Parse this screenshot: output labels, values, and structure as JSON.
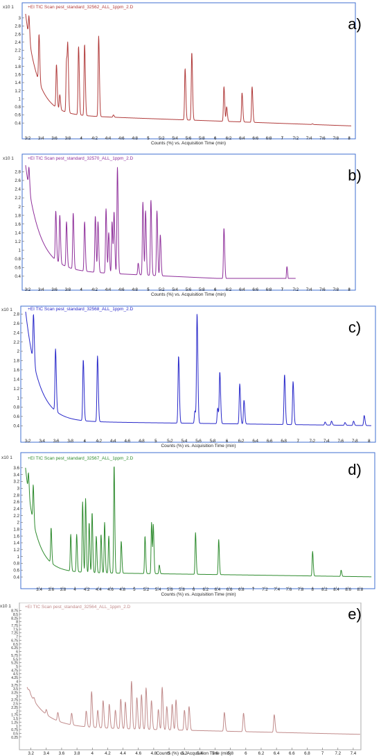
{
  "chart_data": [
    {
      "type": "line",
      "panel_label": "a)",
      "title": "+EI TIC Scan pest_standard_32562_ALL_1ppm_2.D",
      "exponent": "x10 1",
      "xlabel": "Counts (%) vs. Acquisition Time (min)",
      "line_color": "#b03a3a",
      "frame_color": "#3f6fd1",
      "xlim": [
        3.16,
        8.04
      ],
      "ylim": [
        0.3,
        3.1
      ],
      "x_ticks": [
        "3.2",
        "3.4",
        "3.6",
        "3.8",
        "4",
        "4.2",
        "4.4",
        "4.6",
        "4.8",
        "5",
        "5.2",
        "5.4",
        "5.6",
        "5.8",
        "6",
        "6.2",
        "6.4",
        "6.6",
        "6.8",
        "7",
        "7.2",
        "7.4",
        "7.6",
        "7.8",
        "8"
      ],
      "y_ticks": [
        "3",
        "2.8",
        "2.6",
        "2.4",
        "2.2",
        "2",
        "1.8",
        "1.6",
        "1.4",
        "1.2",
        "1",
        "0.8",
        "0.6",
        "0.4"
      ],
      "baseline": {
        "start": 3.1,
        "tau": 0.18,
        "floor": 0.62,
        "slope": -0.06
      },
      "peaks": [
        {
          "x": 3.22,
          "y": 3.05
        },
        {
          "x": 3.37,
          "y": 2.6
        },
        {
          "x": 3.63,
          "y": 1.85
        },
        {
          "x": 3.68,
          "y": 1.1
        },
        {
          "x": 3.78,
          "y": 1.95
        },
        {
          "x": 3.8,
          "y": 2.1
        },
        {
          "x": 3.96,
          "y": 2.3
        },
        {
          "x": 4.05,
          "y": 2.35
        },
        {
          "x": 4.26,
          "y": 2.55
        },
        {
          "x": 4.48,
          "y": 0.6
        },
        {
          "x": 5.55,
          "y": 1.75
        },
        {
          "x": 5.65,
          "y": 2.15
        },
        {
          "x": 6.13,
          "y": 1.3
        },
        {
          "x": 6.17,
          "y": 0.8
        },
        {
          "x": 6.4,
          "y": 1.15
        },
        {
          "x": 6.55,
          "y": 1.3
        },
        {
          "x": 7.45,
          "y": 0.38
        }
      ]
    },
    {
      "type": "line",
      "panel_label": "b)",
      "title": "+EI TIC Scan pest_standard_32570_ALL_1ppm_2.D",
      "exponent": "x10 1",
      "xlabel": "Counts (%) vs. Acquisition Time (min)",
      "line_color": "#8e2e9a",
      "frame_color": "#3f6fd1",
      "xlim": [
        3.16,
        8.04
      ],
      "ylim": [
        0.35,
        2.95
      ],
      "x_ticks": [
        "3.2",
        "3.4",
        "3.6",
        "3.8",
        "4",
        "4.2",
        "4.4",
        "4.6",
        "4.8",
        "5",
        "5.2",
        "5.4",
        "5.6",
        "5.8",
        "6",
        "6.2",
        "6.4",
        "6.6",
        "6.8",
        "7",
        "7.2",
        "7.4",
        "7.6",
        "7.8",
        "8"
      ],
      "y_ticks": [
        "2.8",
        "2.6",
        "2.4",
        "2.2",
        "2",
        "1.8",
        "1.6",
        "1.4",
        "1.2",
        "1",
        "0.8",
        "0.6",
        "0.4"
      ],
      "end_x": 7.2,
      "baseline": {
        "start": 2.95,
        "tau": 0.2,
        "floor": 0.55,
        "slope": -0.07
      },
      "peaks": [
        {
          "x": 3.22,
          "y": 2.9
        },
        {
          "x": 3.62,
          "y": 1.9
        },
        {
          "x": 3.68,
          "y": 1.8
        },
        {
          "x": 3.78,
          "y": 1.65
        },
        {
          "x": 3.88,
          "y": 1.85
        },
        {
          "x": 4.05,
          "y": 1.65
        },
        {
          "x": 4.21,
          "y": 1.78
        },
        {
          "x": 4.25,
          "y": 1.65
        },
        {
          "x": 4.37,
          "y": 1.95
        },
        {
          "x": 4.41,
          "y": 1.4
        },
        {
          "x": 4.46,
          "y": 1.65
        },
        {
          "x": 4.49,
          "y": 1.85
        },
        {
          "x": 4.54,
          "y": 2.9
        },
        {
          "x": 4.85,
          "y": 0.7
        },
        {
          "x": 4.92,
          "y": 2.1
        },
        {
          "x": 4.96,
          "y": 1.9
        },
        {
          "x": 5.04,
          "y": 2.15
        },
        {
          "x": 5.13,
          "y": 1.9
        },
        {
          "x": 5.18,
          "y": 1.35
        },
        {
          "x": 6.13,
          "y": 1.5
        },
        {
          "x": 7.07,
          "y": 0.62
        }
      ]
    },
    {
      "type": "line",
      "panel_label": "c)",
      "title": "+EI TIC Scan pest_standard_32568_ALL_1ppm_2.D",
      "exponent": "x10 1",
      "xlabel": "Counts (%) vs. Acquisition Time (min)",
      "line_color": "#2626c9",
      "frame_color": "#3f6fd1",
      "xlim": [
        3.16,
        8.04
      ],
      "ylim": [
        0.3,
        2.85
      ],
      "x_ticks": [
        "3.2",
        "3.4",
        "3.6",
        "3.8",
        "4",
        "4.2",
        "4.4",
        "4.6",
        "4.8",
        "5",
        "5.2",
        "5.4",
        "5.6",
        "5.8",
        "6",
        "6.2",
        "6.4",
        "6.6",
        "6.8",
        "7",
        "7.2",
        "7.4",
        "7.6",
        "7.8",
        "8"
      ],
      "y_ticks": [
        "2.8",
        "2.6",
        "2.4",
        "2.2",
        "2",
        "1.8",
        "1.6",
        "1.4",
        "1.2",
        "1",
        "0.8",
        "0.6",
        "0.4"
      ],
      "baseline": {
        "start": 2.85,
        "tau": 0.18,
        "floor": 0.5,
        "slope": -0.02
      },
      "peaks": [
        {
          "x": 3.28,
          "y": 2.8
        },
        {
          "x": 3.59,
          "y": 2.05
        },
        {
          "x": 3.98,
          "y": 1.82
        },
        {
          "x": 4.18,
          "y": 1.9
        },
        {
          "x": 5.32,
          "y": 1.9
        },
        {
          "x": 5.55,
          "y": 0.72
        },
        {
          "x": 5.58,
          "y": 2.8
        },
        {
          "x": 5.87,
          "y": 0.78
        },
        {
          "x": 5.9,
          "y": 1.55
        },
        {
          "x": 6.18,
          "y": 1.3
        },
        {
          "x": 6.24,
          "y": 0.95
        },
        {
          "x": 6.81,
          "y": 1.5
        },
        {
          "x": 6.93,
          "y": 1.35
        },
        {
          "x": 7.38,
          "y": 0.48
        },
        {
          "x": 7.47,
          "y": 0.5
        },
        {
          "x": 7.66,
          "y": 0.47
        },
        {
          "x": 7.78,
          "y": 0.5
        },
        {
          "x": 7.93,
          "y": 0.62
        }
      ]
    },
    {
      "type": "line",
      "panel_label": "d)",
      "title": "+EI TIC Scan pest_standard_32567_ALL_1ppm_2.D",
      "exponent": "x10 1",
      "xlabel": "Counts (%) vs. Acquisition Time (min)",
      "line_color": "#2e8b2e",
      "frame_color": "#3f6fd1",
      "xlim": [
        3.16,
        9.0
      ],
      "ylim": [
        0.3,
        3.8
      ],
      "x_ticks": [
        "3.4",
        "3.6",
        "3.8",
        "4",
        "4.2",
        "4.4",
        "4.6",
        "4.8",
        "5",
        "5.2",
        "5.4",
        "5.6",
        "5.8",
        "6",
        "6.2",
        "6.4",
        "6.6",
        "6.8",
        "7",
        "7.2",
        "7.4",
        "7.6",
        "7.8",
        "8",
        "8.2",
        "8.4",
        "8.6",
        "8.8"
      ],
      "y_ticks": [
        "3.6",
        "3.4",
        "3.2",
        "3",
        "2.8",
        "2.6",
        "2.4",
        "2.2",
        "2",
        "1.8",
        "1.6",
        "1.4",
        "1.2",
        "1",
        "0.8",
        "0.6",
        "0.4"
      ],
      "baseline": {
        "start": 3.6,
        "tau": 0.18,
        "floor": 0.55,
        "slope": -0.025
      },
      "peaks": [
        {
          "x": 3.22,
          "y": 3.45
        },
        {
          "x": 3.3,
          "y": 3.1
        },
        {
          "x": 3.6,
          "y": 1.85
        },
        {
          "x": 3.93,
          "y": 1.65
        },
        {
          "x": 4.03,
          "y": 1.65
        },
        {
          "x": 4.13,
          "y": 2.6
        },
        {
          "x": 4.18,
          "y": 2.7
        },
        {
          "x": 4.24,
          "y": 2.0
        },
        {
          "x": 4.29,
          "y": 2.3
        },
        {
          "x": 4.36,
          "y": 1.6
        },
        {
          "x": 4.44,
          "y": 1.65
        },
        {
          "x": 4.5,
          "y": 2.0
        },
        {
          "x": 4.57,
          "y": 1.6
        },
        {
          "x": 4.66,
          "y": 3.7
        },
        {
          "x": 4.78,
          "y": 1.45
        },
        {
          "x": 5.18,
          "y": 1.6
        },
        {
          "x": 5.29,
          "y": 2.0
        },
        {
          "x": 5.32,
          "y": 1.9
        },
        {
          "x": 5.42,
          "y": 0.75
        },
        {
          "x": 6.03,
          "y": 1.7
        },
        {
          "x": 6.42,
          "y": 1.5
        },
        {
          "x": 8.0,
          "y": 1.15
        },
        {
          "x": 8.48,
          "y": 0.6
        }
      ]
    },
    {
      "type": "line",
      "panel_label": "e)",
      "title": "+EI TIC Scan pest_standard_32564_ALL_1ppm_2.D",
      "exponent": "x10 1",
      "xlabel": "Counts (%) vs. Acquisition Time (min)",
      "line_color": "#c08a8a",
      "frame_color": "#a8a8a8",
      "xlim": [
        3.14,
        7.5
      ],
      "ylim": [
        0.0,
        9.0
      ],
      "x_ticks": [
        "3.2",
        "3.4",
        "3.6",
        "3.8",
        "4",
        "4.2",
        "4.4",
        "4.6",
        "4.8",
        "5",
        "5.2",
        "5.4",
        "5.6",
        "5.8",
        "6",
        "6.2",
        "6.4",
        "6.6",
        "6.8",
        "7",
        "7.2",
        "7.4"
      ],
      "y_ticks": [
        "8.75",
        "8.5",
        "8.25",
        "8",
        "7.75",
        "7.5",
        "7.25",
        "7",
        "6.75",
        "6.5",
        "6.25",
        "6",
        "5.75",
        "5.5",
        "5.25",
        "5",
        "4.75",
        "4.5",
        "4.25",
        "4",
        "3.75",
        "3.5",
        "3.25",
        "3",
        "2.75",
        "2.5",
        "2.25",
        "2",
        "1.75",
        "1.5",
        "1.25",
        "1",
        "0.75",
        "0.5",
        "0.25"
      ],
      "baseline": {
        "start": 3.6,
        "tau": 0.22,
        "floor": 0.95,
        "slope": -0.12
      },
      "peaks": [
        {
          "x": 3.18,
          "y": 3.4
        },
        {
          "x": 3.24,
          "y": 2.9
        },
        {
          "x": 3.4,
          "y": 2.1
        },
        {
          "x": 3.55,
          "y": 1.9
        },
        {
          "x": 3.73,
          "y": 1.85
        },
        {
          "x": 3.92,
          "y": 2.0
        },
        {
          "x": 3.99,
          "y": 3.3
        },
        {
          "x": 4.07,
          "y": 2.05
        },
        {
          "x": 4.14,
          "y": 2.7
        },
        {
          "x": 4.22,
          "y": 2.45
        },
        {
          "x": 4.3,
          "y": 2.05
        },
        {
          "x": 4.37,
          "y": 2.8
        },
        {
          "x": 4.43,
          "y": 2.6
        },
        {
          "x": 4.51,
          "y": 4.0
        },
        {
          "x": 4.58,
          "y": 2.9
        },
        {
          "x": 4.64,
          "y": 3.1
        },
        {
          "x": 4.7,
          "y": 3.55
        },
        {
          "x": 4.77,
          "y": 2.7
        },
        {
          "x": 4.86,
          "y": 2.1
        },
        {
          "x": 4.91,
          "y": 3.6
        },
        {
          "x": 4.97,
          "y": 2.3
        },
        {
          "x": 5.04,
          "y": 2.45
        },
        {
          "x": 5.09,
          "y": 2.75
        },
        {
          "x": 5.2,
          "y": 2.05
        },
        {
          "x": 5.26,
          "y": 2.3
        },
        {
          "x": 5.72,
          "y": 1.9
        },
        {
          "x": 5.97,
          "y": 1.85
        },
        {
          "x": 6.37,
          "y": 1.75
        }
      ]
    }
  ]
}
